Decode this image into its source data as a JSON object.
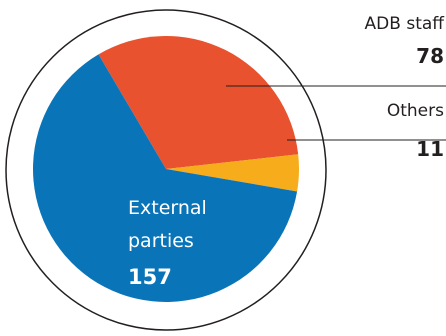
{
  "chart_data": {
    "type": "pie",
    "slices": [
      {
        "label": "ADB staff",
        "value": 78,
        "color": "#e9522e"
      },
      {
        "label": "Others",
        "value": 11,
        "color": "#f7ac1c"
      },
      {
        "label": "External parties",
        "value": 157,
        "color": "#0a74b9"
      }
    ],
    "labels": {
      "adb_name": "ADB staff",
      "adb_value": "78",
      "others_name": "Others",
      "others_value": "11",
      "external_line1": "External",
      "external_line2": "parties",
      "external_value": "157"
    }
  }
}
